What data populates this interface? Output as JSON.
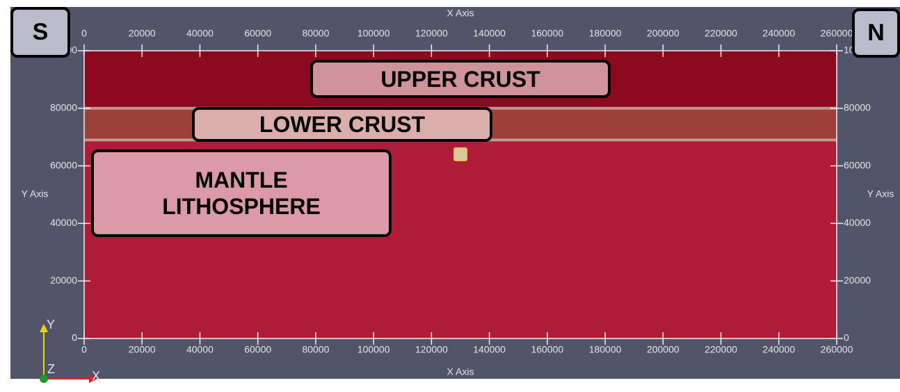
{
  "x_axis": {
    "title": "X Axis",
    "lim": [
      0,
      260000
    ],
    "ticks": [
      0,
      20000,
      40000,
      60000,
      80000,
      100000,
      120000,
      140000,
      160000,
      180000,
      200000,
      220000,
      240000,
      260000
    ]
  },
  "y_axis": {
    "title": "Y Axis",
    "lim": [
      0,
      100000
    ],
    "ticks": [
      0,
      20000,
      40000,
      60000,
      80000,
      100000
    ]
  },
  "layers": [
    {
      "label": "UPPER CRUST",
      "bottom": 80000,
      "top": 100000,
      "color": "#8c0a1f",
      "label_fill": "#d0929b"
    },
    {
      "label": "LOWER CRUST",
      "bottom": 69000,
      "top": 80000,
      "color": "#9d413a",
      "label_fill": "#d9aeab"
    },
    {
      "label": "MANTLE LITHOSPHERE",
      "bottom": 0,
      "top": 69000,
      "color": "#ae1c37",
      "label_fill": "#dc9aa8"
    }
  ],
  "anomaly": {
    "x": 130000,
    "y": 64000,
    "color": "#d8c8a0"
  },
  "compass": {
    "left": "S",
    "right": "N"
  },
  "orientation": {
    "y": "Y",
    "z": "Z",
    "x": "X"
  }
}
